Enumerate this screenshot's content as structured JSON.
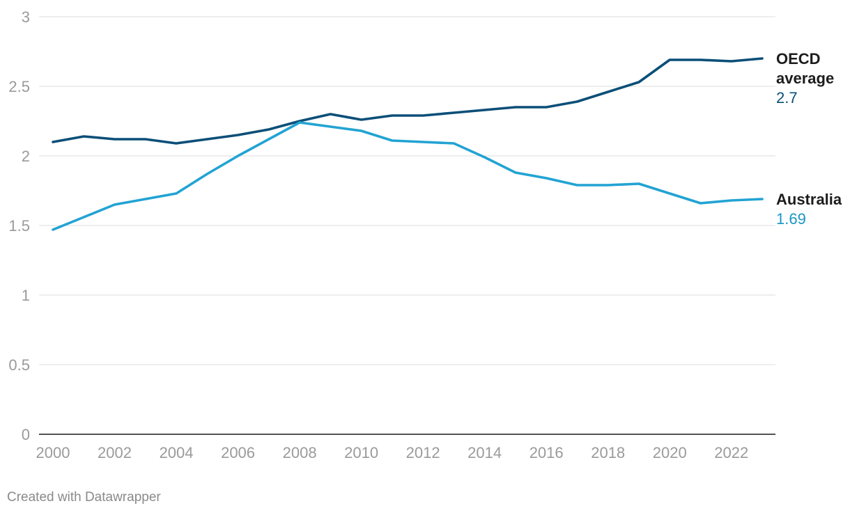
{
  "chart_data": {
    "type": "line",
    "title": "",
    "xlabel": "",
    "ylabel": "",
    "x": [
      2000,
      2001,
      2002,
      2003,
      2004,
      2005,
      2006,
      2007,
      2008,
      2009,
      2010,
      2011,
      2012,
      2013,
      2014,
      2015,
      2016,
      2017,
      2018,
      2019,
      2020,
      2021,
      2022,
      2023
    ],
    "x_tick_labels": [
      "2000",
      "2002",
      "2004",
      "2006",
      "2008",
      "2010",
      "2012",
      "2014",
      "2016",
      "2018",
      "2020",
      "2022"
    ],
    "y_tick_labels": [
      "0",
      "0.5",
      "1",
      "1.5",
      "2",
      "2.5",
      "3"
    ],
    "ylim": [
      0,
      3
    ],
    "grid": true,
    "legend": "direct labels at line ends (right)",
    "series": [
      {
        "name": "OECD average",
        "name_lines": [
          "OECD",
          "average"
        ],
        "color": "#0b4f78",
        "end_value_label": "2.7",
        "values": [
          2.1,
          2.14,
          2.12,
          2.12,
          2.09,
          2.12,
          2.15,
          2.19,
          2.25,
          2.3,
          2.26,
          2.29,
          2.29,
          2.31,
          2.33,
          2.35,
          2.35,
          2.39,
          2.46,
          2.53,
          2.69,
          2.69,
          2.68,
          2.7
        ]
      },
      {
        "name": "Australia",
        "name_lines": [
          "Australia"
        ],
        "color": "#22a3d3",
        "value_color": "#1796c4",
        "end_value_label": "1.69",
        "values": [
          1.47,
          1.56,
          1.65,
          1.69,
          1.73,
          1.87,
          2.0,
          2.12,
          2.24,
          2.21,
          2.18,
          2.11,
          2.1,
          2.09,
          1.99,
          1.88,
          1.84,
          1.79,
          1.79,
          1.8,
          1.73,
          1.66,
          1.68,
          1.69
        ]
      }
    ]
  },
  "footer": {
    "credit": "Created with Datawrapper"
  }
}
